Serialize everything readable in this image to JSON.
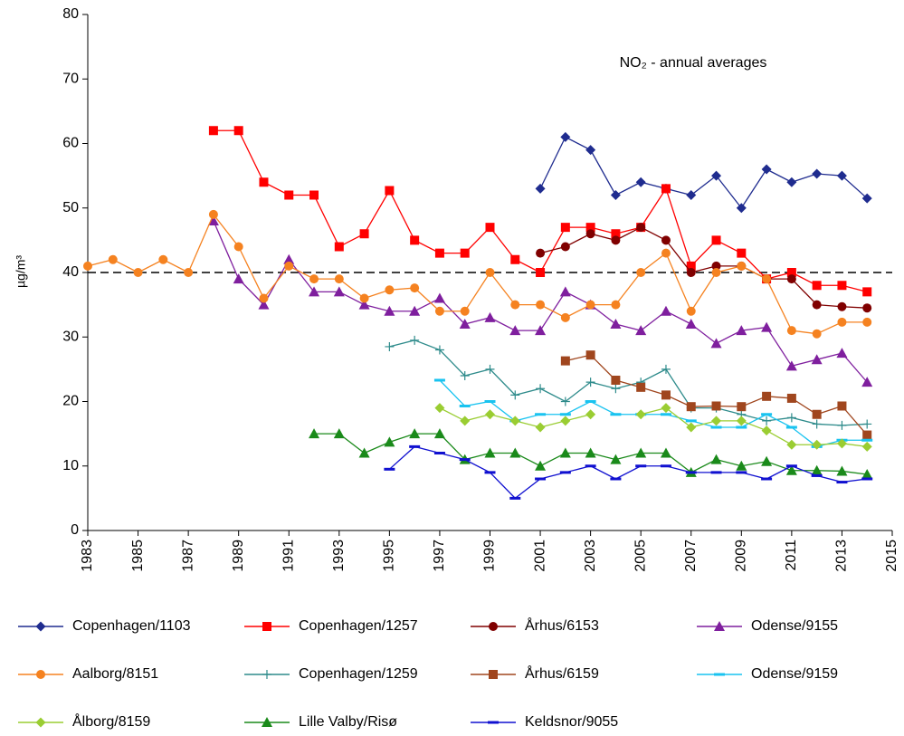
{
  "chart_data": {
    "type": "line",
    "annotation": "NO₂ - annual averages",
    "y_label": "µg/m³",
    "xlim": [
      1983,
      2015
    ],
    "xticks": [
      1983,
      1985,
      1987,
      1989,
      1991,
      1993,
      1995,
      1997,
      1999,
      2001,
      2003,
      2005,
      2007,
      2009,
      2011,
      2013,
      2015
    ],
    "ylim": [
      0,
      80
    ],
    "yticks": [
      0,
      10,
      20,
      30,
      40,
      50,
      60,
      70,
      80
    ],
    "reference_line": 40,
    "series": [
      {
        "name": "Copenhagen/1103",
        "color": "#1f2c8f",
        "marker": "diamond",
        "x": [
          2001,
          2002,
          2003,
          2004,
          2005,
          2006,
          2007,
          2008,
          2009,
          2010,
          2011,
          2012,
          2013,
          2014
        ],
        "values": [
          53,
          61,
          59,
          52,
          54,
          53,
          52,
          55,
          50,
          56,
          54,
          55.3,
          55,
          51.5
        ]
      },
      {
        "name": "Copenhagen/1257",
        "color": "#ff0000",
        "marker": "square",
        "x": [
          1988,
          1989,
          1990,
          1991,
          1992,
          1993,
          1994,
          1995,
          1996,
          1997,
          1998,
          1999,
          2000,
          2001,
          2002,
          2003,
          2004,
          2005,
          2006,
          2007,
          2008,
          2009,
          2010,
          2011,
          2012,
          2013,
          2014
        ],
        "values": [
          62,
          62,
          54,
          52,
          52,
          44,
          46,
          52.7,
          45,
          43,
          43,
          47,
          42,
          40,
          47,
          47,
          46,
          47,
          53,
          41,
          45,
          43,
          39,
          40,
          38,
          38,
          37
        ]
      },
      {
        "name": "Århus/6153",
        "color": "#800000",
        "marker": "circle",
        "x": [
          2001,
          2002,
          2003,
          2004,
          2005,
          2006,
          2007,
          2008,
          2009,
          2010,
          2011,
          2012,
          2013,
          2014
        ],
        "values": [
          43,
          44,
          46,
          45,
          47,
          45,
          40,
          41,
          41,
          39,
          39,
          35,
          34.7,
          34.5
        ]
      },
      {
        "name": "Odense/9155",
        "color": "#7f1f9e",
        "marker": "triangle",
        "x": [
          1988,
          1989,
          1990,
          1991,
          1992,
          1993,
          1994,
          1995,
          1996,
          1997,
          1998,
          1999,
          2000,
          2001,
          2002,
          2003,
          2004,
          2005,
          2006,
          2007,
          2008,
          2009,
          2010,
          2011,
          2012,
          2013,
          2014
        ],
        "values": [
          48,
          39,
          35,
          42,
          37,
          37,
          35,
          34,
          34,
          36,
          32,
          33,
          31,
          31,
          37,
          35,
          32,
          31,
          34,
          32,
          29,
          31,
          31.5,
          25.5,
          26.5,
          27.5,
          23
        ]
      },
      {
        "name": "Aalborg/8151",
        "color": "#f58220",
        "marker": "circle",
        "x": [
          1983,
          1984,
          1985,
          1986,
          1987,
          1988,
          1989,
          1990,
          1991,
          1992,
          1993,
          1994,
          1995,
          1996,
          1997,
          1998,
          1999,
          2000,
          2001,
          2002,
          2003,
          2004,
          2005,
          2006,
          2007,
          2008,
          2009,
          2010,
          2011,
          2012,
          2013,
          2014
        ],
        "values": [
          41,
          42,
          40,
          42,
          40,
          49,
          44,
          36,
          41,
          39,
          39,
          36,
          37.3,
          37.6,
          34,
          34,
          40,
          35,
          35,
          33,
          35,
          35,
          40,
          43,
          34,
          40,
          41,
          39,
          31,
          30.5,
          32.3,
          32.3
        ]
      },
      {
        "name": "Copenhagen/1259",
        "color": "#2e8b8b",
        "marker": "plus",
        "x": [
          1995,
          1996,
          1997,
          1998,
          1999,
          2000,
          2001,
          2002,
          2003,
          2004,
          2005,
          2006,
          2007,
          2008,
          2009,
          2010,
          2011,
          2012,
          2013,
          2014
        ],
        "values": [
          28.5,
          29.5,
          28,
          24,
          25,
          21,
          22,
          20,
          23,
          22,
          23,
          25,
          19,
          19,
          18,
          17,
          17.5,
          16.5,
          16.3,
          16.5
        ]
      },
      {
        "name": "Århus/6159",
        "color": "#a0461e",
        "marker": "square",
        "x": [
          2002,
          2003,
          2004,
          2005,
          2006,
          2007,
          2008,
          2009,
          2010,
          2011,
          2012,
          2013,
          2014
        ],
        "values": [
          26.3,
          27.2,
          23.3,
          22.2,
          21,
          19.2,
          19.3,
          19.2,
          20.8,
          20.5,
          18,
          19.3,
          14.8
        ]
      },
      {
        "name": "Odense/9159",
        "color": "#19c3f0",
        "marker": "dash",
        "x": [
          1997,
          1998,
          1999,
          2000,
          2001,
          2002,
          2003,
          2004,
          2005,
          2006,
          2007,
          2008,
          2009,
          2010,
          2011,
          2012,
          2013,
          2014
        ],
        "values": [
          23.3,
          19.3,
          20,
          17,
          18,
          18,
          20,
          18,
          18,
          18,
          17,
          16,
          16,
          18,
          16,
          13,
          14,
          14
        ]
      },
      {
        "name": "Ålborg/8159",
        "color": "#9acd32",
        "marker": "diamond",
        "x": [
          1997,
          1998,
          1999,
          2000,
          2001,
          2002,
          2003,
          2004,
          2005,
          2006,
          2007,
          2008,
          2009,
          2010,
          2011,
          2012,
          2013,
          2014
        ],
        "values": [
          19,
          17,
          18,
          17,
          16,
          17,
          18,
          null,
          18,
          19,
          16,
          17,
          17,
          15.5,
          13.3,
          13.3,
          13.5,
          13
        ]
      },
      {
        "name": "Lille Valby/Risø",
        "color": "#1a8a1a",
        "marker": "triangle",
        "x": [
          1992,
          1993,
          1994,
          1995,
          1996,
          1997,
          1998,
          1999,
          2000,
          2001,
          2002,
          2003,
          2004,
          2005,
          2006,
          2007,
          2008,
          2009,
          2010,
          2011,
          2012,
          2013,
          2014
        ],
        "values": [
          15,
          15,
          12,
          13.7,
          15,
          15,
          11,
          12,
          12,
          10,
          12,
          12,
          11,
          12,
          12,
          9,
          11,
          10,
          10.7,
          9.3,
          9.3,
          9.2,
          8.7
        ]
      },
      {
        "name": "Keldsnor/9055",
        "color": "#1010d0",
        "marker": "dash",
        "x": [
          1995,
          1996,
          1997,
          1998,
          1999,
          2000,
          2001,
          2002,
          2003,
          2004,
          2005,
          2006,
          2007,
          2008,
          2009,
          2010,
          2011,
          2012,
          2013,
          2014
        ],
        "values": [
          9.5,
          13,
          12,
          11,
          9,
          5,
          8,
          9,
          10,
          8,
          10,
          10,
          9,
          9,
          9,
          8,
          10,
          8.5,
          7.5,
          8
        ]
      }
    ]
  }
}
